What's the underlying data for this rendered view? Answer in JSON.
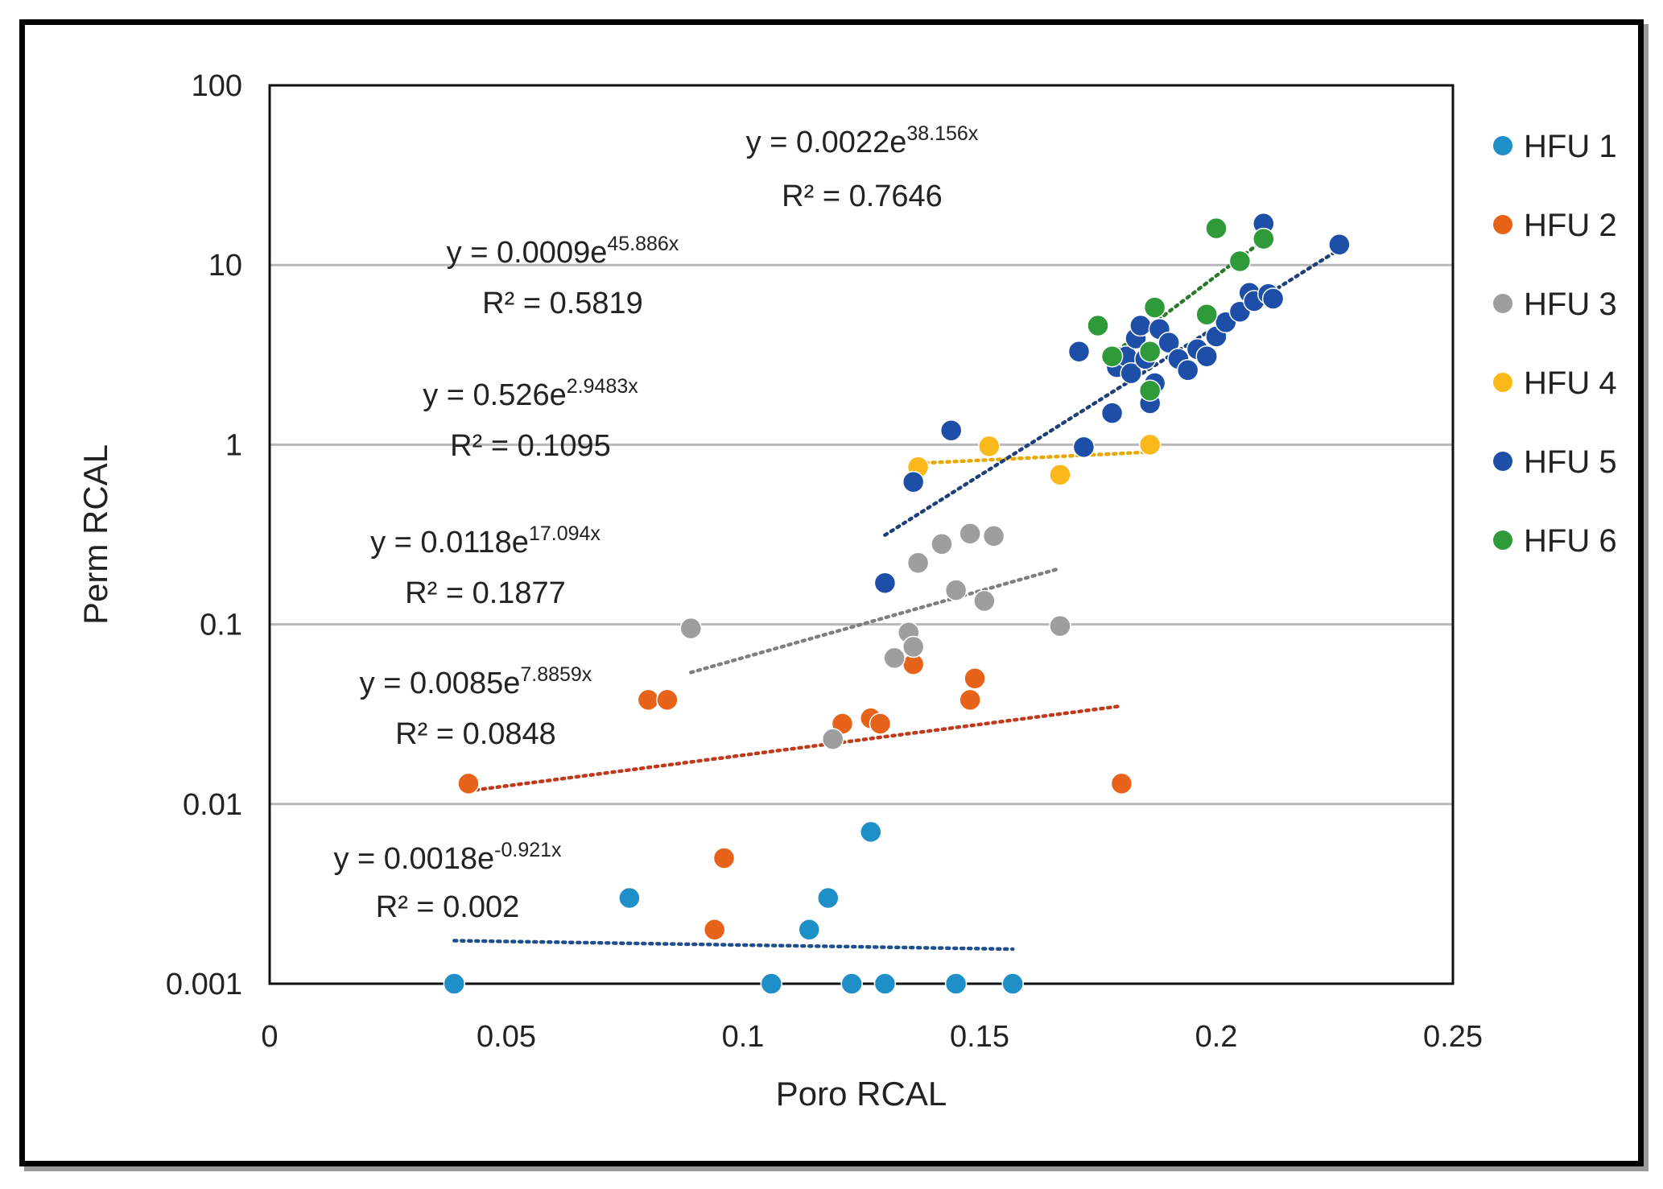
{
  "chart_data": {
    "type": "scatter",
    "title": "",
    "xlabel": "Poro RCAL",
    "ylabel": "Perm RCAL",
    "xlim": [
      0,
      0.25
    ],
    "ylim": [
      0.001,
      100
    ],
    "yscale": "log",
    "x_ticks": [
      "0",
      "0.05",
      "0.1",
      "0.15",
      "0.2",
      "0.25"
    ],
    "y_ticks": [
      "0.001",
      "0.01",
      "0.1",
      "1",
      "10",
      "100"
    ],
    "grid": "horizontal",
    "legend_position": "right",
    "series": [
      {
        "name": "HFU 1",
        "color": "#1f8fc8",
        "points": [
          [
            0.039,
            0.001
          ],
          [
            0.076,
            0.003
          ],
          [
            0.106,
            0.001
          ],
          [
            0.114,
            0.002
          ],
          [
            0.118,
            0.003
          ],
          [
            0.123,
            0.001
          ],
          [
            0.127,
            0.007
          ],
          [
            0.13,
            0.001
          ],
          [
            0.145,
            0.001
          ],
          [
            0.157,
            0.001
          ]
        ],
        "trendline": {
          "x": [
            0.039,
            0.157
          ],
          "a": 0.0018,
          "b": -0.921,
          "color": "#1f4e8c"
        },
        "equation_label": "y = 0.0018e",
        "equation_exponent": "-0.921x",
        "r2_label": "R² = 0.002"
      },
      {
        "name": "HFU 2",
        "color": "#e8631a",
        "points": [
          [
            0.042,
            0.013
          ],
          [
            0.08,
            0.038
          ],
          [
            0.084,
            0.038
          ],
          [
            0.094,
            0.002
          ],
          [
            0.096,
            0.005
          ],
          [
            0.121,
            0.028
          ],
          [
            0.127,
            0.03
          ],
          [
            0.129,
            0.028
          ],
          [
            0.136,
            0.06
          ],
          [
            0.148,
            0.038
          ],
          [
            0.149,
            0.05
          ],
          [
            0.18,
            0.013
          ]
        ],
        "trendline": {
          "x": [
            0.042,
            0.18
          ],
          "a": 0.0085,
          "b": 7.8859,
          "color": "#c0391b"
        },
        "equation_label": "y = 0.0085e",
        "equation_exponent": "7.8859x",
        "r2_label": "R² = 0.0848"
      },
      {
        "name": "HFU 3",
        "color": "#9e9e9e",
        "points": [
          [
            0.089,
            0.095
          ],
          [
            0.119,
            0.023
          ],
          [
            0.132,
            0.065
          ],
          [
            0.135,
            0.09
          ],
          [
            0.136,
            0.075
          ],
          [
            0.137,
            0.22
          ],
          [
            0.142,
            0.28
          ],
          [
            0.145,
            0.155
          ],
          [
            0.148,
            0.32
          ],
          [
            0.151,
            0.135
          ],
          [
            0.153,
            0.31
          ],
          [
            0.167,
            0.098
          ]
        ],
        "trendline": {
          "x": [
            0.089,
            0.167
          ],
          "a": 0.0118,
          "b": 17.094,
          "color": "#7f7f7f"
        },
        "equation_label": "y = 0.0118e",
        "equation_exponent": "17.094x",
        "r2_label": "R² = 0.1877"
      },
      {
        "name": "HFU 4",
        "color": "#fbb81a",
        "points": [
          [
            0.137,
            0.75
          ],
          [
            0.152,
            0.98
          ],
          [
            0.167,
            0.68
          ],
          [
            0.186,
            1.0
          ]
        ],
        "trendline": {
          "x": [
            0.137,
            0.186
          ],
          "a": 0.526,
          "b": 2.9483,
          "color": "#e7a800"
        },
        "equation_label": "y = 0.526e",
        "equation_exponent": "2.9483x",
        "r2_label": "R² = 0.1095"
      },
      {
        "name": "HFU 5",
        "color": "#1d4fa8",
        "points": [
          [
            0.13,
            0.17
          ],
          [
            0.136,
            0.62
          ],
          [
            0.144,
            1.2
          ],
          [
            0.171,
            3.3
          ],
          [
            0.172,
            0.97
          ],
          [
            0.178,
            1.5
          ],
          [
            0.179,
            2.7
          ],
          [
            0.181,
            3.1
          ],
          [
            0.182,
            2.5
          ],
          [
            0.183,
            3.9
          ],
          [
            0.184,
            4.6
          ],
          [
            0.185,
            3.0
          ],
          [
            0.186,
            1.7
          ],
          [
            0.187,
            2.2
          ],
          [
            0.188,
            4.4
          ],
          [
            0.19,
            3.7
          ],
          [
            0.192,
            3.0
          ],
          [
            0.194,
            2.6
          ],
          [
            0.196,
            3.4
          ],
          [
            0.198,
            3.1
          ],
          [
            0.2,
            4.0
          ],
          [
            0.202,
            4.8
          ],
          [
            0.205,
            5.5
          ],
          [
            0.207,
            7.0
          ],
          [
            0.208,
            6.3
          ],
          [
            0.21,
            17.0
          ],
          [
            0.211,
            6.9
          ],
          [
            0.212,
            6.5
          ],
          [
            0.226,
            13.0
          ]
        ],
        "trendline": {
          "x": [
            0.13,
            0.226
          ],
          "a": 0.0022,
          "b": 38.156,
          "color": "#1f3f7a"
        },
        "equation_label": "y = 0.0022e",
        "equation_exponent": "38.156x",
        "r2_label": "R² = 0.7646"
      },
      {
        "name": "HFU 6",
        "color": "#2e9a3a",
        "points": [
          [
            0.175,
            4.6
          ],
          [
            0.178,
            3.1
          ],
          [
            0.186,
            2.0
          ],
          [
            0.186,
            3.3
          ],
          [
            0.187,
            5.8
          ],
          [
            0.198,
            5.3
          ],
          [
            0.2,
            16.0
          ],
          [
            0.205,
            10.5
          ],
          [
            0.21,
            14.0
          ]
        ],
        "trendline": {
          "x": [
            0.178,
            0.21
          ],
          "a": 0.0009,
          "b": 45.886,
          "color": "#2b7a2b"
        },
        "equation_label": "y = 0.0009e",
        "equation_exponent": "45.886x",
        "r2_label": "R² = 0.5819"
      }
    ]
  }
}
